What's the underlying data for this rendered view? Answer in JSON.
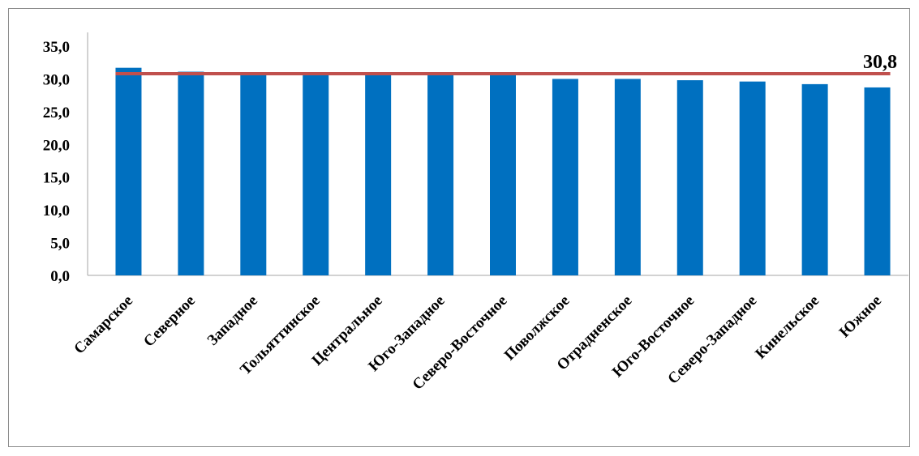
{
  "chart_data": {
    "type": "bar",
    "categories": [
      "Самарское",
      "Северное",
      "Западное",
      "Тольяттинское",
      "Центральное",
      "Юго-Западное",
      "Северо-Восточное",
      "Поволжское",
      "Отрадненское",
      "Юго-Восточное",
      "Северо-Западное",
      "Кинельское",
      "Южное"
    ],
    "values": [
      31.7,
      31.1,
      31.0,
      30.9,
      30.9,
      30.8,
      30.8,
      30.0,
      30.0,
      29.8,
      29.6,
      29.2,
      28.7
    ],
    "ylim": [
      0,
      35
    ],
    "yticks": [
      "0,0",
      "5,0",
      "10,0",
      "15,0",
      "20,0",
      "25,0",
      "30,0",
      "35,0"
    ],
    "reference_line": {
      "value": 30.8,
      "label": "30,8"
    },
    "colors": {
      "bar": "#0070c0",
      "reference_line": "#c0504d"
    },
    "grid": false,
    "legend": "none"
  }
}
